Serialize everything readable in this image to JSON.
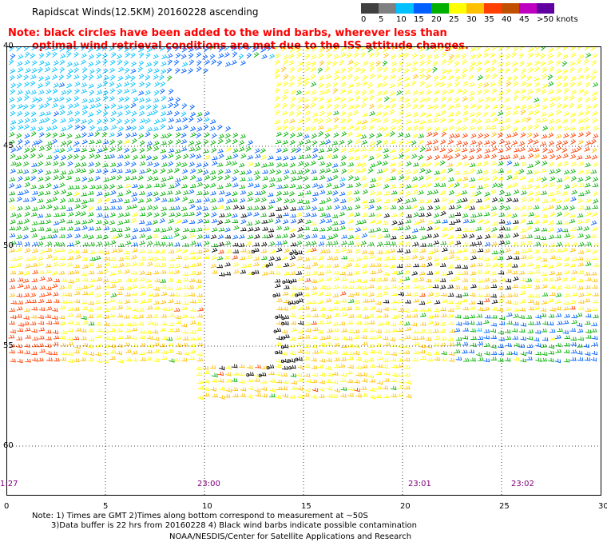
{
  "title": "Rapidscat Winds(12.5KM) 20160228 ascending",
  "note_line1": "Note: black circles have been added to the wind barbs, wherever less than",
  "note_line2": "optimal wind retrieval conditions are met due to the ISS attitude changes.",
  "legend": {
    "labels": [
      "0",
      "5",
      "10",
      "15",
      "20",
      "25",
      "30",
      "35",
      "40",
      "45",
      ">50 knots"
    ],
    "colors": [
      "#404040",
      "#808080",
      "#00c0ff",
      "#0060ff",
      "#00b000",
      "#ffff00",
      "#ffc000",
      "#ff4000",
      "#c05000",
      "#c000c0",
      "#6000a0"
    ]
  },
  "map": {
    "lat_labels": [
      "40",
      "45",
      "50",
      "55",
      "60"
    ],
    "lon_labels": [
      "0",
      "5",
      "10",
      "15",
      "20",
      "25",
      "30"
    ],
    "time_labels": [
      "1:27",
      "23:00",
      "23:01",
      "23:02"
    ]
  },
  "footer": {
    "line1": "Note: 1) Times are GMT 2)Times along bottom correspond to measurement at ~50S",
    "line2": "3)Data buffer is 22 hrs from 20160228 4) Black wind barbs indicate possible contamination",
    "line3": "NOAA/NESDIS/Center for Satellite Applications and Research"
  }
}
